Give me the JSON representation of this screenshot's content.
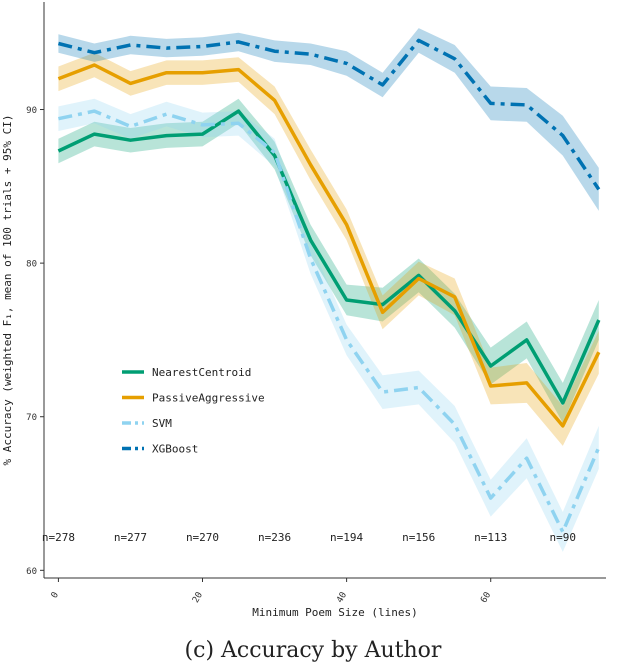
{
  "caption": "(c) Accuracy by Author",
  "chart_data": {
    "type": "line",
    "title": "",
    "xlabel": "Minimum Poem Size (lines)",
    "ylabel": "% Accuracy (weighted F₁, mean of 100 trials + 95% CI)",
    "xlim": [
      -2,
      76
    ],
    "ylim": [
      59.5,
      97
    ],
    "x_ticks": [
      0,
      20,
      40,
      60
    ],
    "y_ticks": [
      60,
      70,
      80,
      90
    ],
    "x": [
      0,
      5,
      10,
      15,
      20,
      25,
      30,
      35,
      40,
      45,
      50,
      55,
      60,
      65,
      70,
      75
    ],
    "series": [
      {
        "name": "NearestCentroid",
        "color": "#009e73",
        "dash": "solid",
        "values": [
          87.3,
          88.4,
          88.0,
          88.3,
          88.4,
          89.9,
          87.0,
          81.5,
          77.6,
          77.3,
          79.2,
          76.9,
          73.3,
          75.0,
          70.9,
          76.3
        ],
        "ci": [
          0.8,
          0.8,
          0.8,
          0.8,
          0.8,
          0.8,
          0.9,
          1.0,
          1.0,
          1.1,
          1.1,
          1.1,
          1.2,
          1.2,
          1.3,
          1.3
        ]
      },
      {
        "name": "PassiveAggressive",
        "color": "#e69f00",
        "dash": "solid",
        "values": [
          92.0,
          92.9,
          91.7,
          92.4,
          92.4,
          92.6,
          90.6,
          86.4,
          82.5,
          76.8,
          79.0,
          77.8,
          72.0,
          72.2,
          69.4,
          74.2
        ],
        "ci": [
          0.8,
          0.8,
          0.8,
          0.8,
          0.8,
          0.8,
          0.9,
          1.0,
          1.0,
          1.1,
          1.1,
          1.2,
          1.2,
          1.3,
          1.3,
          1.4
        ]
      },
      {
        "name": "SVM",
        "color": "#8fd3f0",
        "dash": "dashdot",
        "values": [
          89.4,
          89.9,
          88.9,
          89.7,
          89.0,
          89.1,
          87.2,
          80.3,
          75.0,
          71.6,
          71.9,
          69.5,
          64.7,
          67.3,
          62.5,
          68.0
        ],
        "ci": [
          0.8,
          0.8,
          0.8,
          0.8,
          0.8,
          0.8,
          0.9,
          1.0,
          1.0,
          1.1,
          1.1,
          1.2,
          1.2,
          1.3,
          1.3,
          1.4
        ]
      },
      {
        "name": "XGBoost",
        "color": "#0072b2",
        "dash": "dashdot",
        "values": [
          94.3,
          93.7,
          94.2,
          94.0,
          94.1,
          94.4,
          93.8,
          93.6,
          93.0,
          91.6,
          94.5,
          93.3,
          90.4,
          90.3,
          88.3,
          84.8
        ],
        "ci": [
          0.6,
          0.6,
          0.6,
          0.6,
          0.6,
          0.6,
          0.7,
          0.7,
          0.8,
          0.8,
          0.8,
          0.9,
          1.1,
          1.1,
          1.3,
          1.4
        ]
      }
    ],
    "annotations": [
      {
        "x": 0,
        "text": "n=278"
      },
      {
        "x": 10,
        "text": "n=277"
      },
      {
        "x": 20,
        "text": "n=270"
      },
      {
        "x": 30,
        "text": "n=236"
      },
      {
        "x": 40,
        "text": "n=194"
      },
      {
        "x": 50,
        "text": "n=156"
      },
      {
        "x": 60,
        "text": "n=113"
      },
      {
        "x": 70,
        "text": "n=90"
      }
    ],
    "annotation_y": 61.9,
    "legend_position": "center-left",
    "grid": false
  }
}
